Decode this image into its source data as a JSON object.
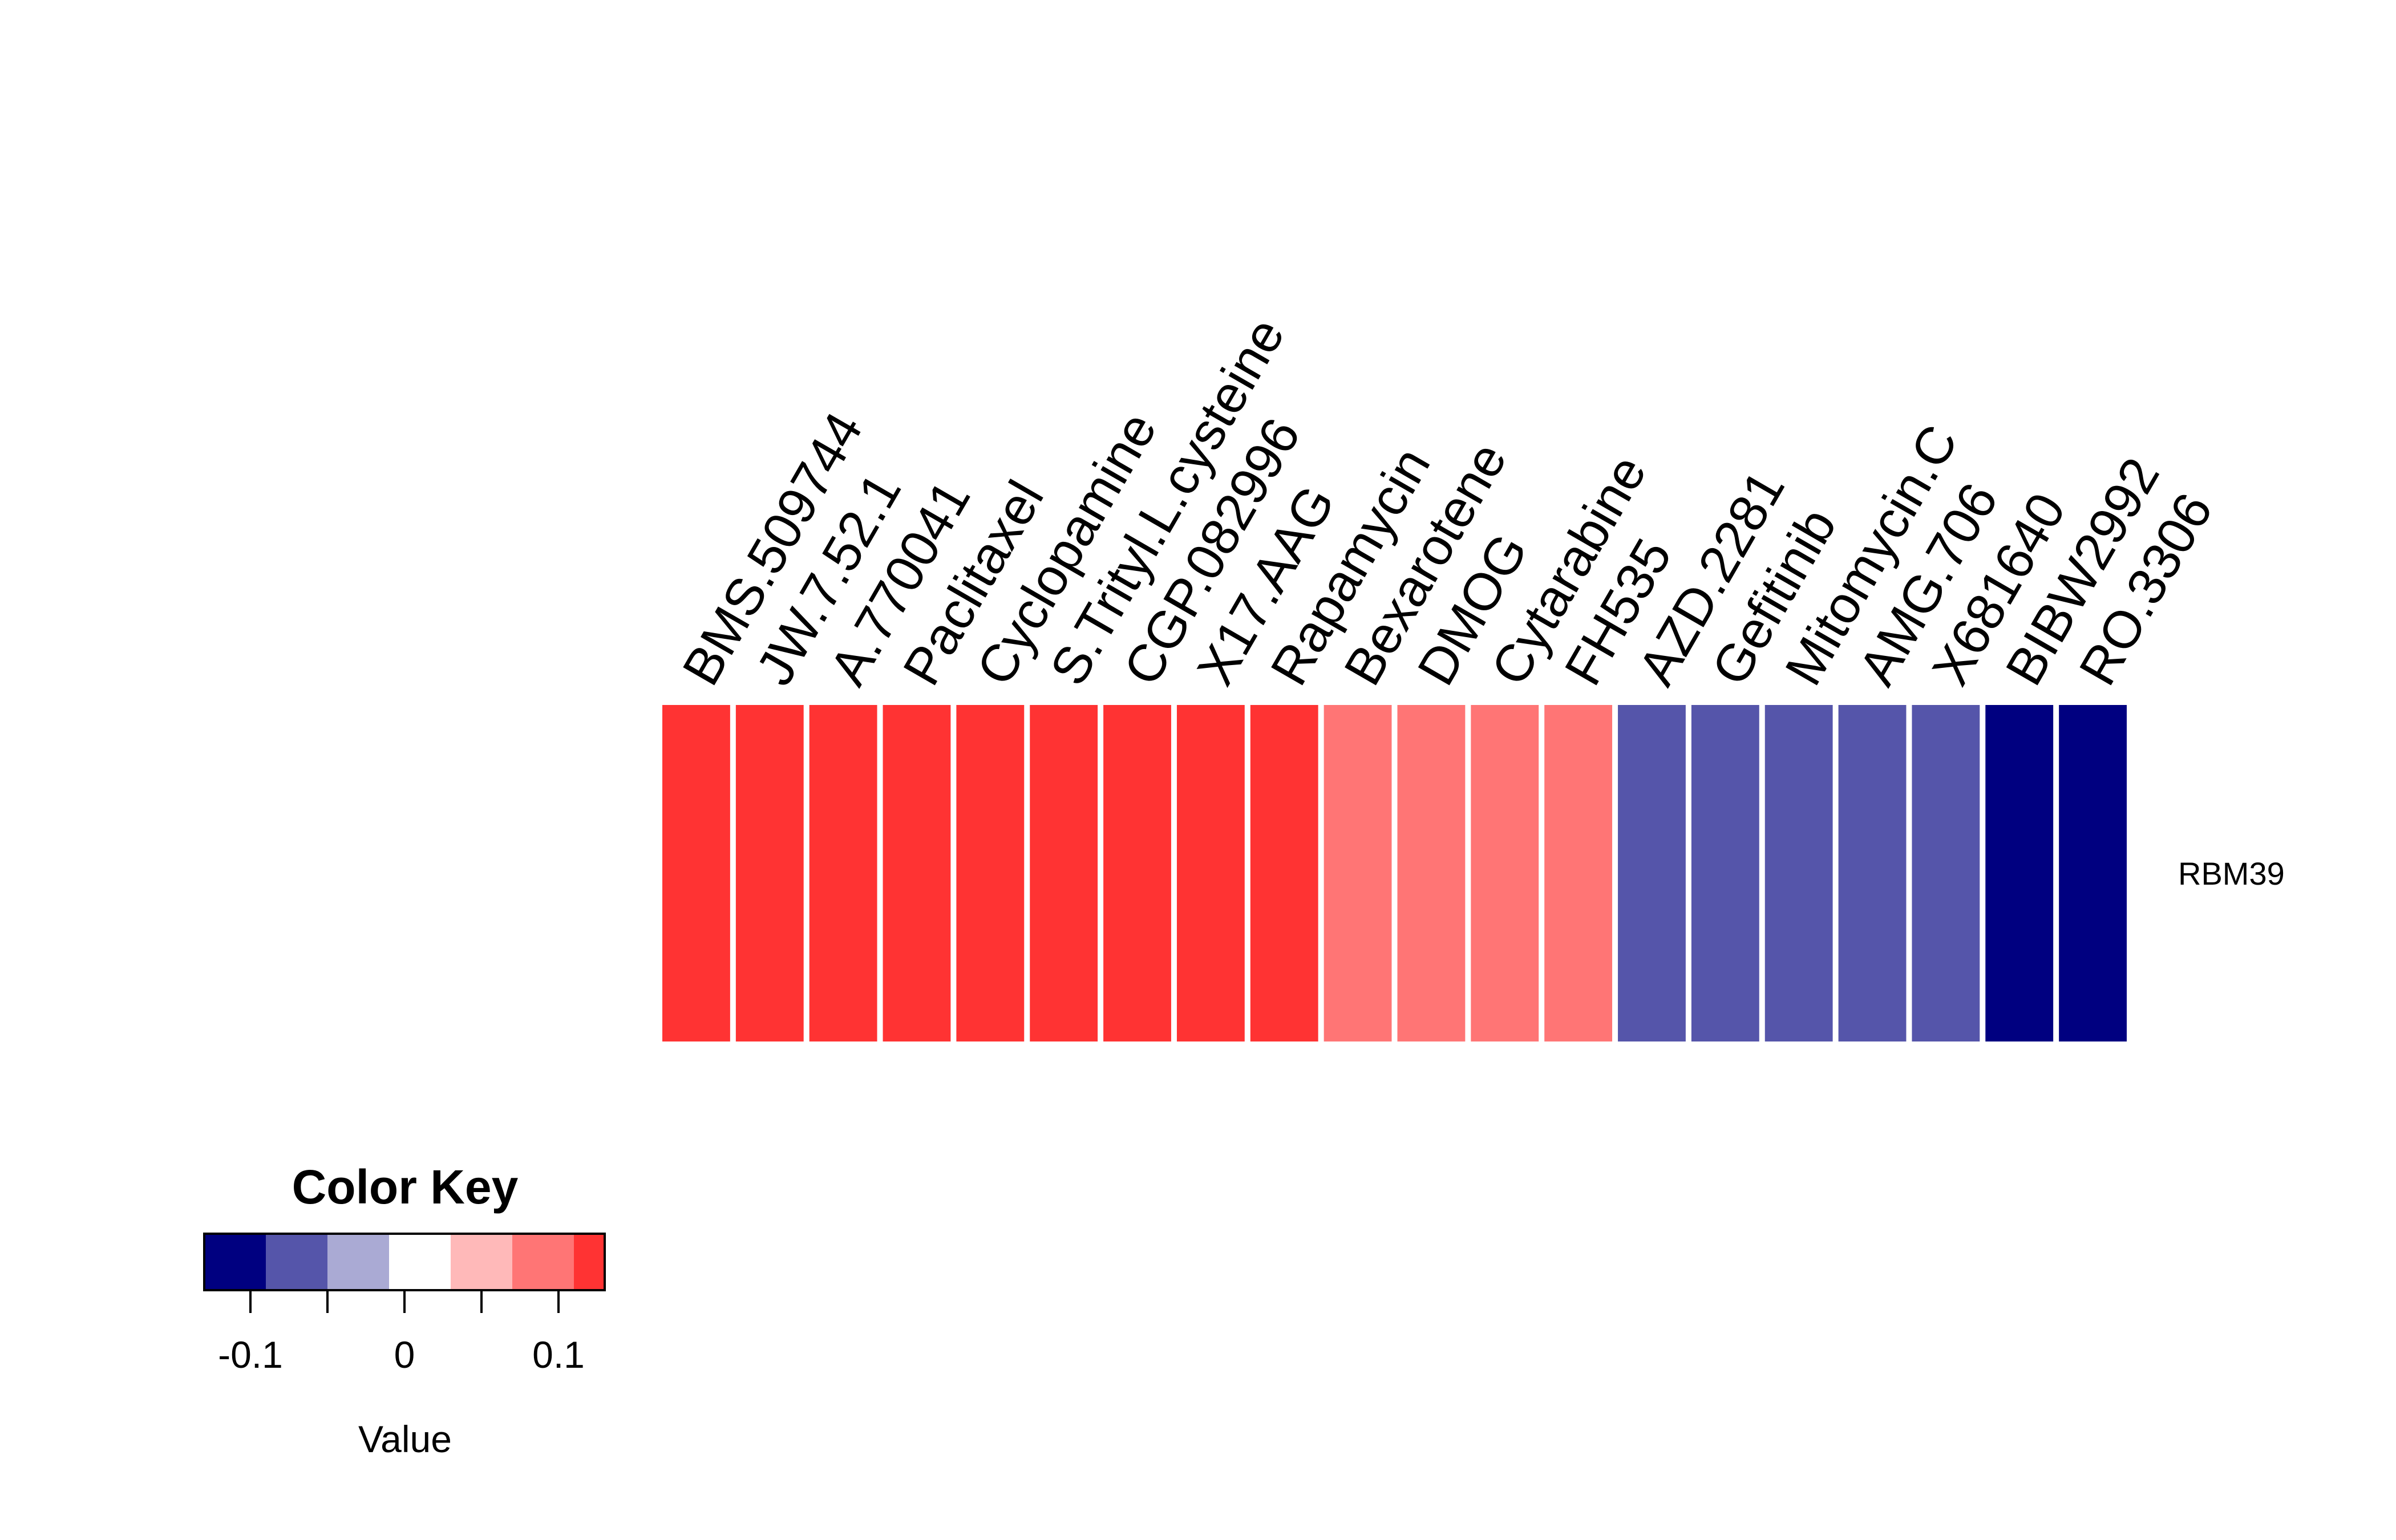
{
  "chart_data": {
    "type": "heatmap",
    "rows": [
      "RBM39"
    ],
    "columns": [
      "BMS.509744",
      "JW.7.52.1",
      "A.770041",
      "Paclitaxel",
      "Cyclopamine",
      "S.Trityl.L.cysteine",
      "CGP.082996",
      "X17.AAG",
      "Rapamycin",
      "Bexarotene",
      "DMOG",
      "Cytarabine",
      "FH535",
      "AZD.2281",
      "Gefitinib",
      "Mitomycin.C",
      "AMG.706",
      "X681640",
      "BIBW2992",
      "RO.3306"
    ],
    "values": [
      [
        0.13,
        0.13,
        0.13,
        0.13,
        0.13,
        0.13,
        0.13,
        0.13,
        0.13,
        0.08,
        0.08,
        0.08,
        0.08,
        -0.08,
        -0.08,
        -0.08,
        -0.08,
        -0.08,
        -0.13,
        -0.13
      ]
    ],
    "color_key": {
      "title": "Color Key",
      "xlabel": "Value",
      "range": [
        -0.13,
        0.13
      ],
      "bins": [
        -0.13,
        -0.09,
        -0.05,
        -0.01,
        0.03,
        0.07,
        0.11,
        0.13
      ],
      "colors": [
        "#000080",
        "#5555AA",
        "#AAAAD4",
        "#FFFFFF",
        "#FFB9B9",
        "#FF7575",
        "#FF3333"
      ],
      "ticks": [
        -0.1,
        -0.05,
        0,
        0.05,
        0.1
      ],
      "tick_labels": [
        "-0.1",
        "",
        "0",
        "",
        "0.1"
      ]
    }
  }
}
